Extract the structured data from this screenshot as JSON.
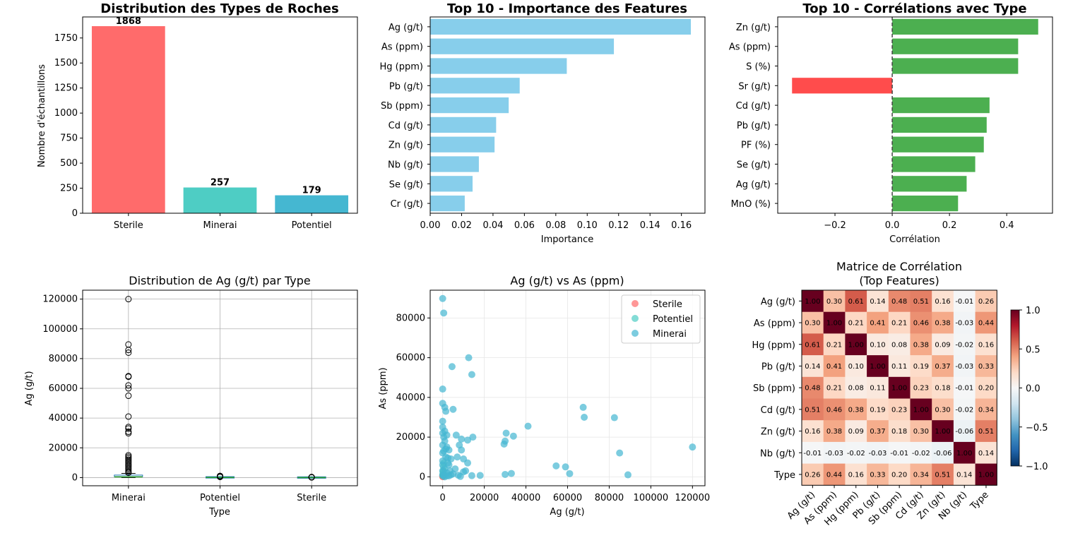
{
  "chart_data": [
    {
      "type": "bar",
      "title": "Distribution des Types de Roches",
      "xlabel": "",
      "ylabel": "Nombre d'échantillons",
      "categories": [
        "Sterile",
        "Minerai",
        "Potentiel"
      ],
      "values": [
        1868,
        257,
        179
      ],
      "colors": [
        "#ff6b6b",
        "#4ecdc4",
        "#45b7d1"
      ],
      "ylim": [
        0,
        1960
      ],
      "yticks": [
        0,
        250,
        500,
        750,
        1000,
        1250,
        1500,
        1750
      ],
      "data_labels": [
        "1868",
        "257",
        "179"
      ],
      "grid": false
    },
    {
      "type": "bar",
      "orientation": "horizontal",
      "title": "Top 10 - Importance des Features",
      "xlabel": "Importance",
      "ylabel": "",
      "categories": [
        "Ag (g/t)",
        "As (ppm)",
        "Hg (ppm)",
        "Pb (g/t)",
        "Sb (ppm)",
        "Cd (g/t)",
        "Zn (g/t)",
        "Nb (g/t)",
        "Se (g/t)",
        "Cr (g/t)"
      ],
      "values": [
        0.166,
        0.117,
        0.087,
        0.057,
        0.05,
        0.042,
        0.041,
        0.031,
        0.027,
        0.022
      ],
      "color": "#87ceeb",
      "xlim": [
        0,
        0.175
      ],
      "xticks": [
        0.0,
        0.02,
        0.04,
        0.06,
        0.08,
        0.1,
        0.12,
        0.14,
        0.16
      ],
      "grid": false
    },
    {
      "type": "bar",
      "orientation": "horizontal",
      "title": "Top 10 - Corrélations avec Type",
      "xlabel": "Corrélation",
      "ylabel": "",
      "categories": [
        "Zn (g/t)",
        "As (ppm)",
        "S (%)",
        "Sr (g/t)",
        "Cd (g/t)",
        "Pb (g/t)",
        "PF (%)",
        "Se (g/t)",
        "Ag (g/t)",
        "MnO (%)"
      ],
      "values": [
        0.51,
        0.44,
        0.44,
        -0.35,
        0.34,
        0.33,
        0.32,
        0.29,
        0.26,
        0.23
      ],
      "positive_color": "#4caf50",
      "negative_color": "#ff4c4c",
      "xlim": [
        -0.4,
        0.56
      ],
      "xticks": [
        -0.2,
        0.0,
        0.2,
        0.4
      ],
      "zero_line": true,
      "grid": false
    },
    {
      "type": "box",
      "title": "Distribution de Ag (g/t) par Type",
      "xlabel": "Type",
      "ylabel": "Ag (g/t)",
      "categories": [
        "Minerai",
        "Potentiel",
        "Sterile"
      ],
      "boxes": [
        {
          "q1": 200,
          "median": 500,
          "q3": 1200,
          "whisker_low": 0,
          "whisker_high": 2800,
          "outliers": [
            120000,
            89500,
            85800,
            84000,
            68200,
            67800,
            62000,
            60000,
            55000,
            41000,
            34000,
            33000,
            30800,
            29800,
            15000,
            14000,
            13000,
            12000,
            11000,
            10000,
            9000,
            8000,
            7000,
            6000,
            5000,
            4000,
            3200
          ]
        },
        {
          "q1": 20,
          "median": 60,
          "q3": 150,
          "whisker_low": 0,
          "whisker_high": 350,
          "outliers": [
            450,
            520,
            600,
            700,
            800,
            900,
            1000,
            1100
          ]
        },
        {
          "q1": 5,
          "median": 15,
          "q3": 40,
          "whisker_low": 0,
          "whisker_high": 100,
          "outliers": [
            150,
            180,
            200,
            250,
            300,
            350
          ]
        }
      ],
      "ylim": [
        -5500,
        126000
      ],
      "yticks": [
        0,
        20000,
        40000,
        60000,
        80000,
        100000,
        120000
      ],
      "grid": true
    },
    {
      "type": "scatter",
      "title": "Ag (g/t) vs As (ppm)",
      "xlabel": "Ag (g/t)",
      "ylabel": "As (ppm)",
      "xlim": [
        -6000,
        126000
      ],
      "ylim": [
        -4500,
        94000
      ],
      "xticks": [
        0,
        20000,
        40000,
        60000,
        80000,
        100000,
        120000
      ],
      "yticks": [
        0,
        20000,
        40000,
        60000,
        80000
      ],
      "legend": "top-right",
      "grid": true,
      "series": [
        {
          "name": "Sterile",
          "color": "#ff6b6b",
          "points": [
            [
              30,
              100
            ],
            [
              50,
              300
            ],
            [
              80,
              150
            ],
            [
              20,
              500
            ],
            [
              100,
              800
            ]
          ]
        },
        {
          "name": "Potentiel",
          "color": "#4ecdc4",
          "points": [
            [
              100,
              500
            ],
            [
              200,
              1500
            ],
            [
              300,
              3000
            ],
            [
              150,
              800
            ],
            [
              400,
              5000
            ],
            [
              250,
              2500
            ],
            [
              500,
              7000
            ],
            [
              600,
              1200
            ]
          ]
        },
        {
          "name": "Minerai",
          "color": "#45b7d1",
          "points": [
            [
              0,
              89800
            ],
            [
              500,
              82500
            ],
            [
              0,
              44200
            ],
            [
              0,
              37000
            ],
            [
              1000,
              35000
            ],
            [
              0,
              28000
            ],
            [
              1500,
              33000
            ],
            [
              0,
              25000
            ],
            [
              1000,
              23000
            ],
            [
              0,
              22000
            ],
            [
              500,
              20000
            ],
            [
              2000,
              21000
            ],
            [
              1000,
              18000
            ],
            [
              0,
              16000
            ],
            [
              2000,
              15000
            ],
            [
              500,
              13000
            ],
            [
              3000,
              13500
            ],
            [
              0,
              12000
            ],
            [
              1500,
              10000
            ],
            [
              0,
              8000
            ],
            [
              2500,
              7000
            ],
            [
              0,
              6000
            ],
            [
              1000,
              4000
            ],
            [
              0,
              3000
            ],
            [
              2000,
              2000
            ],
            [
              0,
              1000
            ],
            [
              500,
              500
            ],
            [
              1000,
              0
            ],
            [
              3000,
              500
            ],
            [
              4000,
              1000
            ],
            [
              3500,
              3000
            ],
            [
              5000,
              1500
            ],
            [
              3000,
              6000
            ],
            [
              4000,
              9000
            ],
            [
              4500,
              55500
            ],
            [
              5000,
              34000
            ],
            [
              7000,
              10000
            ],
            [
              6500,
              21000
            ],
            [
              8000,
              16000
            ],
            [
              9000,
              19000
            ],
            [
              10000,
              9000
            ],
            [
              10000,
              2500
            ],
            [
              12000,
              18500
            ],
            [
              12500,
              60000
            ],
            [
              14000,
              51500
            ],
            [
              14500,
              20000
            ],
            [
              14000,
              600
            ],
            [
              7500,
              800
            ],
            [
              8500,
              200
            ],
            [
              11000,
              3000
            ],
            [
              18000,
              700
            ],
            [
              29500,
              16500
            ],
            [
              30000,
              18000
            ],
            [
              30500,
              22000
            ],
            [
              34000,
              20500
            ],
            [
              30000,
              1200
            ],
            [
              33000,
              1700
            ],
            [
              41000,
              25500
            ],
            [
              54500,
              5500
            ],
            [
              59000,
              5000
            ],
            [
              61000,
              1600
            ],
            [
              67500,
              35000
            ],
            [
              68000,
              30000
            ],
            [
              82500,
              29800
            ],
            [
              85000,
              12000
            ],
            [
              89000,
              1000
            ],
            [
              120000,
              15000
            ],
            [
              2000,
              500
            ],
            [
              1500,
              14000
            ],
            [
              2500,
              9500
            ],
            [
              6000,
              4000
            ],
            [
              9000,
              13500
            ],
            [
              12000,
              7000
            ]
          ]
        }
      ]
    },
    {
      "type": "heatmap",
      "title": "Matrice de Corrélation\n(Top Features)",
      "title_lines": [
        "Matrice de Corrélation",
        "(Top Features)"
      ],
      "labels": [
        "Ag (g/t)",
        "As (ppm)",
        "Hg (ppm)",
        "Pb (g/t)",
        "Sb (ppm)",
        "Cd (g/t)",
        "Zn (g/t)",
        "Nb (g/t)",
        "Type"
      ],
      "matrix": [
        [
          1.0,
          0.3,
          0.61,
          0.14,
          0.48,
          0.51,
          0.16,
          -0.01,
          0.26
        ],
        [
          0.3,
          1.0,
          0.21,
          0.41,
          0.21,
          0.46,
          0.38,
          -0.03,
          0.44
        ],
        [
          0.61,
          0.21,
          1.0,
          0.1,
          0.08,
          0.38,
          0.09,
          -0.02,
          0.16
        ],
        [
          0.14,
          0.41,
          0.1,
          1.0,
          0.11,
          0.19,
          0.37,
          -0.03,
          0.33
        ],
        [
          0.48,
          0.21,
          0.08,
          0.11,
          1.0,
          0.23,
          0.18,
          -0.01,
          0.2
        ],
        [
          0.51,
          0.46,
          0.38,
          0.19,
          0.23,
          1.0,
          0.3,
          -0.02,
          0.34
        ],
        [
          0.16,
          0.38,
          0.09,
          0.37,
          0.18,
          0.3,
          1.0,
          -0.06,
          0.51
        ],
        [
          -0.01,
          -0.03,
          -0.02,
          -0.03,
          -0.01,
          -0.02,
          -0.06,
          1.0,
          0.14
        ],
        [
          0.26,
          0.44,
          0.16,
          0.33,
          0.2,
          0.34,
          0.51,
          0.14,
          1.0
        ]
      ],
      "colormap": "RdBu_r",
      "vmin": -1.0,
      "vmax": 1.0,
      "colorbar_ticks": [
        -1.0,
        -0.5,
        0.0,
        0.5,
        1.0
      ]
    }
  ]
}
